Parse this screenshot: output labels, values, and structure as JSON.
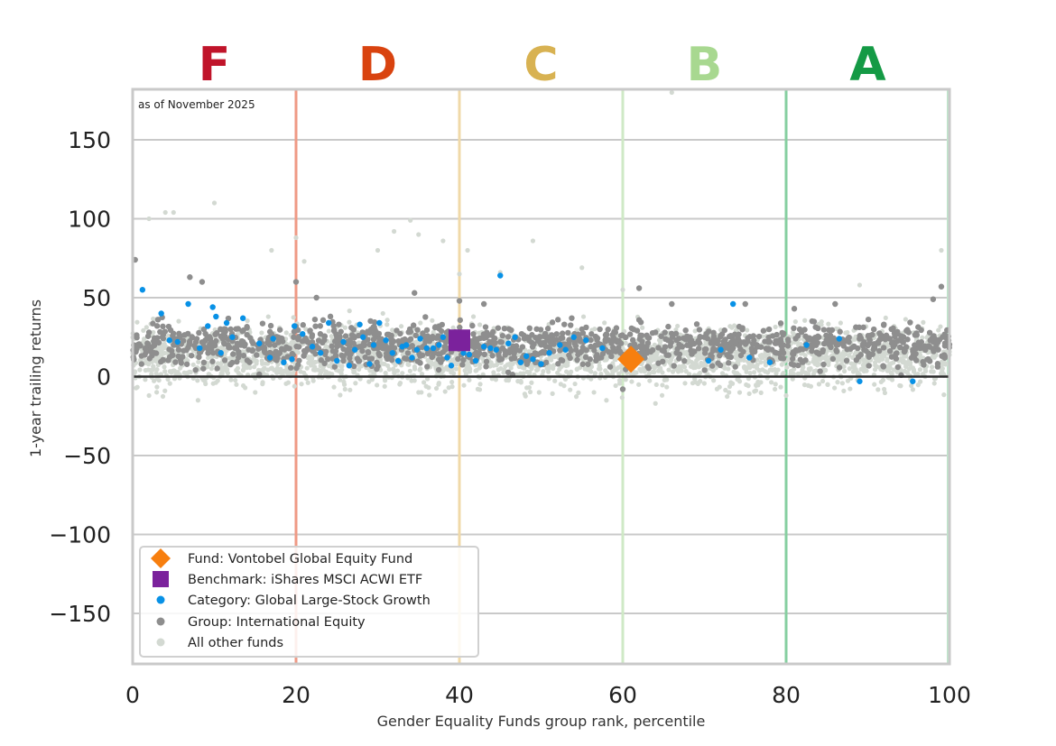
{
  "chart_data": {
    "type": "scatter",
    "note": "as of November 2025",
    "xlabel": "Gender Equality Funds group rank, percentile",
    "ylabel": "1-year trailing returns",
    "xlim": [
      0,
      100
    ],
    "ylim": [
      -182,
      182
    ],
    "x_ticks": [
      "0",
      "20",
      "40",
      "60",
      "80",
      "100"
    ],
    "y_ticks": [
      "150",
      "100",
      "50",
      "0",
      "−50",
      "−100",
      "−150"
    ],
    "grid": true,
    "legend_position": "bottom-left",
    "grades": [
      {
        "label": "F",
        "x_center": 10,
        "boundary": 20,
        "color": "#c0142a",
        "line_color": "#ef9a85"
      },
      {
        "label": "D",
        "x_center": 30,
        "boundary": 40,
        "color": "#d9430f",
        "line_color": "#f0d9a8"
      },
      {
        "label": "C",
        "x_center": 50,
        "boundary": 60,
        "color": "#d8b252",
        "line_color": "#cfe9c6"
      },
      {
        "label": "B",
        "x_center": 70,
        "boundary": 80,
        "color": "#a8d890",
        "line_color": "#86cfa0"
      },
      {
        "label": "A",
        "x_center": 90,
        "boundary": 100,
        "color": "#149a45",
        "line_color": "#bfe6cc"
      }
    ],
    "series": [
      {
        "name": "Fund: Vontobel Global Equity Fund",
        "marker": "diamond",
        "color": "#f77f0f",
        "points": [
          [
            61,
            11
          ]
        ]
      },
      {
        "name": "Benchmark: iShares MSCI ACWI ETF",
        "marker": "square",
        "color": "#7b229c",
        "points": [
          [
            40,
            23
          ]
        ]
      },
      {
        "name": "Category: Global Large-Stock Growth",
        "marker": "circle",
        "color": "#0891e6",
        "points": [
          [
            1.2,
            55
          ],
          [
            3.5,
            40
          ],
          [
            4.5,
            23
          ],
          [
            5.5,
            22
          ],
          [
            6.8,
            46
          ],
          [
            8.2,
            18
          ],
          [
            9.2,
            32
          ],
          [
            9.8,
            44
          ],
          [
            10.2,
            38
          ],
          [
            10.8,
            15
          ],
          [
            11.5,
            34
          ],
          [
            12.2,
            25
          ],
          [
            13.5,
            37
          ],
          [
            15.5,
            21
          ],
          [
            16.8,
            12
          ],
          [
            17.2,
            24
          ],
          [
            18.5,
            9
          ],
          [
            19.5,
            11
          ],
          [
            19.8,
            32
          ],
          [
            20.8,
            27
          ],
          [
            22,
            19
          ],
          [
            23,
            15
          ],
          [
            24,
            34
          ],
          [
            25,
            10
          ],
          [
            25.8,
            22
          ],
          [
            26.5,
            7
          ],
          [
            27.2,
            17
          ],
          [
            27.8,
            33
          ],
          [
            28.2,
            25
          ],
          [
            29,
            8
          ],
          [
            29.5,
            20
          ],
          [
            30.2,
            34
          ],
          [
            31,
            23
          ],
          [
            31.8,
            15
          ],
          [
            32.5,
            10
          ],
          [
            33,
            19
          ],
          [
            33.5,
            20
          ],
          [
            34.2,
            12
          ],
          [
            34.8,
            17
          ],
          [
            35.2,
            24
          ],
          [
            36,
            18
          ],
          [
            36.8,
            18
          ],
          [
            37.5,
            20
          ],
          [
            38,
            25
          ],
          [
            38.5,
            12
          ],
          [
            39,
            7
          ],
          [
            40.5,
            15
          ],
          [
            41.2,
            14
          ],
          [
            42,
            10
          ],
          [
            43,
            19
          ],
          [
            43.8,
            18
          ],
          [
            44.5,
            17
          ],
          [
            45,
            64
          ],
          [
            46,
            21
          ],
          [
            46.8,
            25
          ],
          [
            47.5,
            9
          ],
          [
            48.2,
            13
          ],
          [
            49,
            11
          ],
          [
            50,
            8
          ],
          [
            51,
            15
          ],
          [
            52.3,
            20
          ],
          [
            53,
            17
          ],
          [
            54,
            25
          ],
          [
            55.5,
            23
          ],
          [
            57.5,
            18
          ],
          [
            70.5,
            10
          ],
          [
            72,
            17
          ],
          [
            73.5,
            46
          ],
          [
            75.5,
            12
          ],
          [
            78,
            9
          ],
          [
            82.5,
            20
          ],
          [
            86.5,
            24
          ],
          [
            89,
            -3
          ],
          [
            95.5,
            -3
          ]
        ]
      },
      {
        "name": "Group: International Equity",
        "marker": "circle",
        "color": "#8e8e8e",
        "points": [
          [
            0.3,
            74
          ],
          [
            7,
            63
          ],
          [
            8.5,
            60
          ],
          [
            20,
            60
          ],
          [
            22.5,
            50
          ],
          [
            34.5,
            53
          ],
          [
            40,
            48
          ],
          [
            43,
            46
          ],
          [
            59,
            23
          ],
          [
            62,
            56
          ],
          [
            66,
            46
          ],
          [
            75,
            46
          ],
          [
            81,
            43
          ],
          [
            86,
            46
          ],
          [
            99,
            57
          ],
          [
            98,
            49
          ],
          [
            60,
            -8
          ],
          [
            2,
            28
          ],
          [
            5,
            20
          ],
          [
            12,
            30
          ],
          [
            18,
            15
          ],
          [
            25,
            25
          ],
          [
            30,
            20
          ],
          [
            35,
            18
          ],
          [
            45,
            22
          ],
          [
            50,
            15
          ],
          [
            55,
            30
          ],
          [
            64,
            28
          ],
          [
            68,
            20
          ],
          [
            72,
            26
          ],
          [
            78,
            22
          ],
          [
            84,
            25
          ],
          [
            90,
            20
          ],
          [
            95,
            28
          ]
        ],
        "density_band": [
          5,
          35
        ]
      },
      {
        "name": "All other funds",
        "marker": "circle",
        "color": "#d3d9d2",
        "points": [
          [
            2,
            100
          ],
          [
            4,
            104
          ],
          [
            5,
            104
          ],
          [
            10,
            110
          ],
          [
            17,
            80
          ],
          [
            20,
            88
          ],
          [
            21,
            73
          ],
          [
            30,
            80
          ],
          [
            32,
            92
          ],
          [
            34,
            99
          ],
          [
            35,
            90
          ],
          [
            38,
            86
          ],
          [
            40,
            65
          ],
          [
            41,
            80
          ],
          [
            45,
            66
          ],
          [
            49,
            86
          ],
          [
            55,
            69
          ],
          [
            60,
            55
          ],
          [
            66,
            180
          ],
          [
            89,
            58
          ],
          [
            99,
            80
          ],
          [
            2,
            -12
          ],
          [
            8,
            -15
          ],
          [
            15,
            -10
          ],
          [
            26,
            -8
          ],
          [
            35,
            -10
          ],
          [
            48,
            -11
          ],
          [
            58,
            -15
          ],
          [
            64,
            -17
          ],
          [
            73,
            -10
          ],
          [
            80,
            -12
          ],
          [
            92,
            -8
          ]
        ],
        "density_band": [
          -5,
          30
        ]
      }
    ]
  }
}
